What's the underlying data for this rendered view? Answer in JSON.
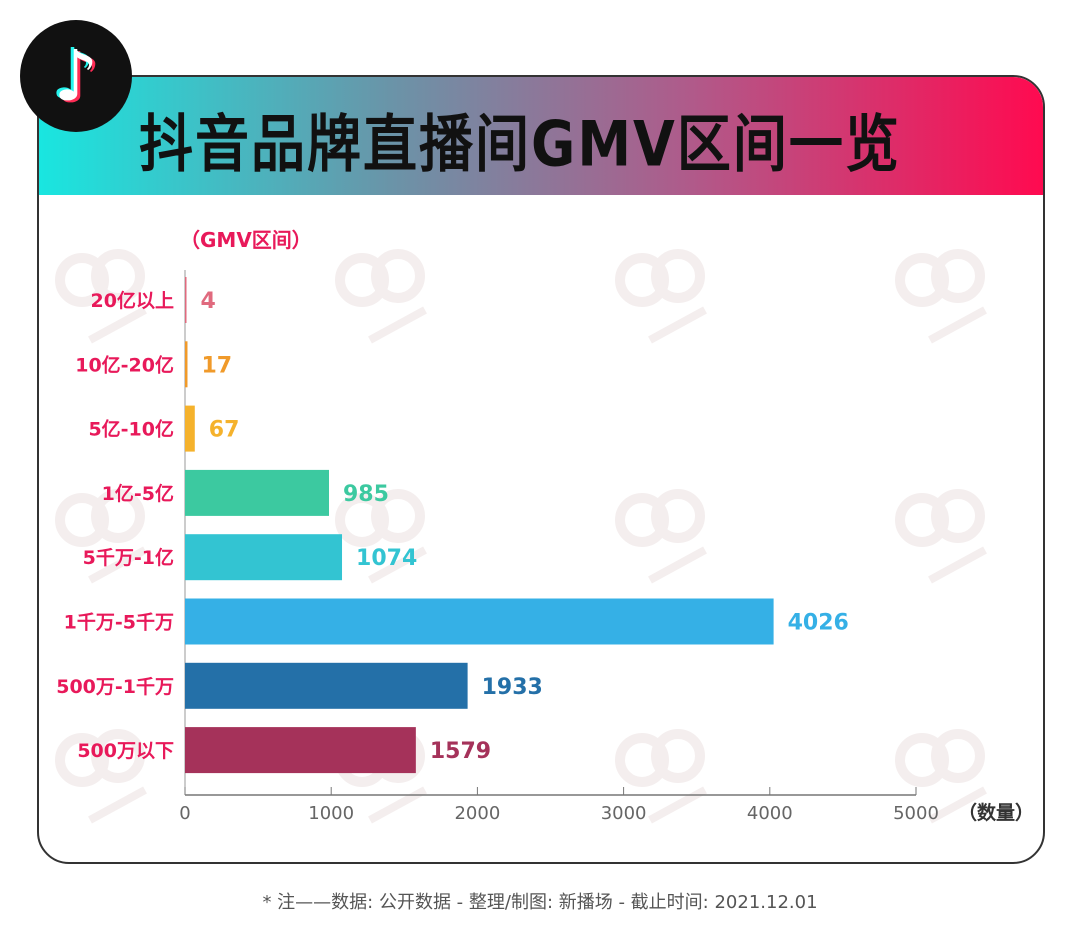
{
  "logo": "TikTok",
  "footer": "* 注——数据: 公开数据  -  整理/制图: 新播场  -  截止时间: 2021.12.01",
  "watermark": "新播场",
  "chart_data": {
    "type": "bar",
    "orientation": "horizontal",
    "title": "抖音品牌直播间GMV区间一览",
    "ylabel": "（GMV区间）",
    "xlabel": "（数量）",
    "xlim": [
      0,
      5000
    ],
    "xticks": [
      0,
      1000,
      2000,
      3000,
      4000,
      5000
    ],
    "grid": false,
    "categories": [
      "20亿以上",
      "10亿-20亿",
      "5亿-10亿",
      "1亿-5亿",
      "5千万-1亿",
      "1千万-5千万",
      "500万-1千万",
      "500万以下"
    ],
    "values": [
      4,
      17,
      67,
      985,
      1074,
      4026,
      1933,
      1579
    ],
    "colors": [
      "#e06a7e",
      "#f09a2a",
      "#f5b22c",
      "#3cc9a0",
      "#33c4d2",
      "#35b0e6",
      "#2470a8",
      "#a5325a"
    ],
    "label_color": "#e8195a"
  }
}
